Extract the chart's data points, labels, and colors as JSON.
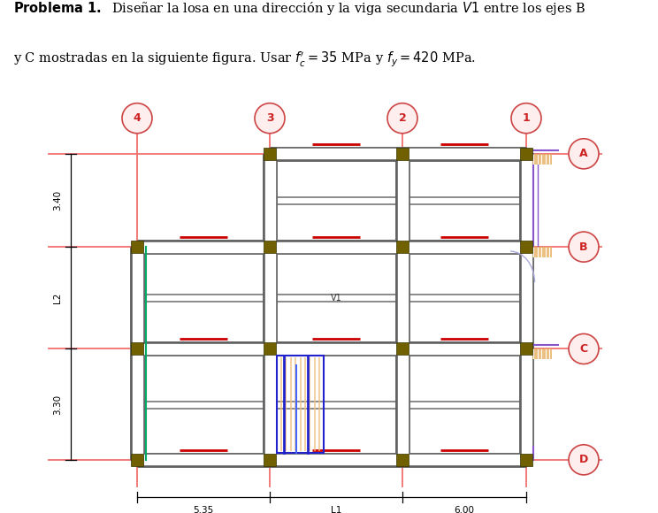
{
  "bg_color": "#ffffff",
  "red_grid": "#f08080",
  "beam_color": "#666666",
  "col_color": "#706000",
  "col_labels": [
    "4",
    "3",
    "2",
    "1"
  ],
  "row_labels": [
    "A",
    "B",
    "C",
    "D"
  ],
  "dim_535": "5.35",
  "dim_L1": "L1",
  "dim_600": "6.00",
  "dim_340": "3.40",
  "dim_L2": "L2",
  "dim_330": "3.30",
  "V1_label": "V1",
  "title_line1": "\\mathbf{Problema\\ 1.}\\quad \\text{Dise\\~nar la losa en una direcci\\'{o}n y la viga secundaria } V1 \\text{ entre los ejes B}",
  "title_line2": "\\text{y C mostradas en la siguiente figura. Usar } f_c^{\\prime} = 35 \\text{ MPa y } f_y = 420 \\text{ MPa.}"
}
